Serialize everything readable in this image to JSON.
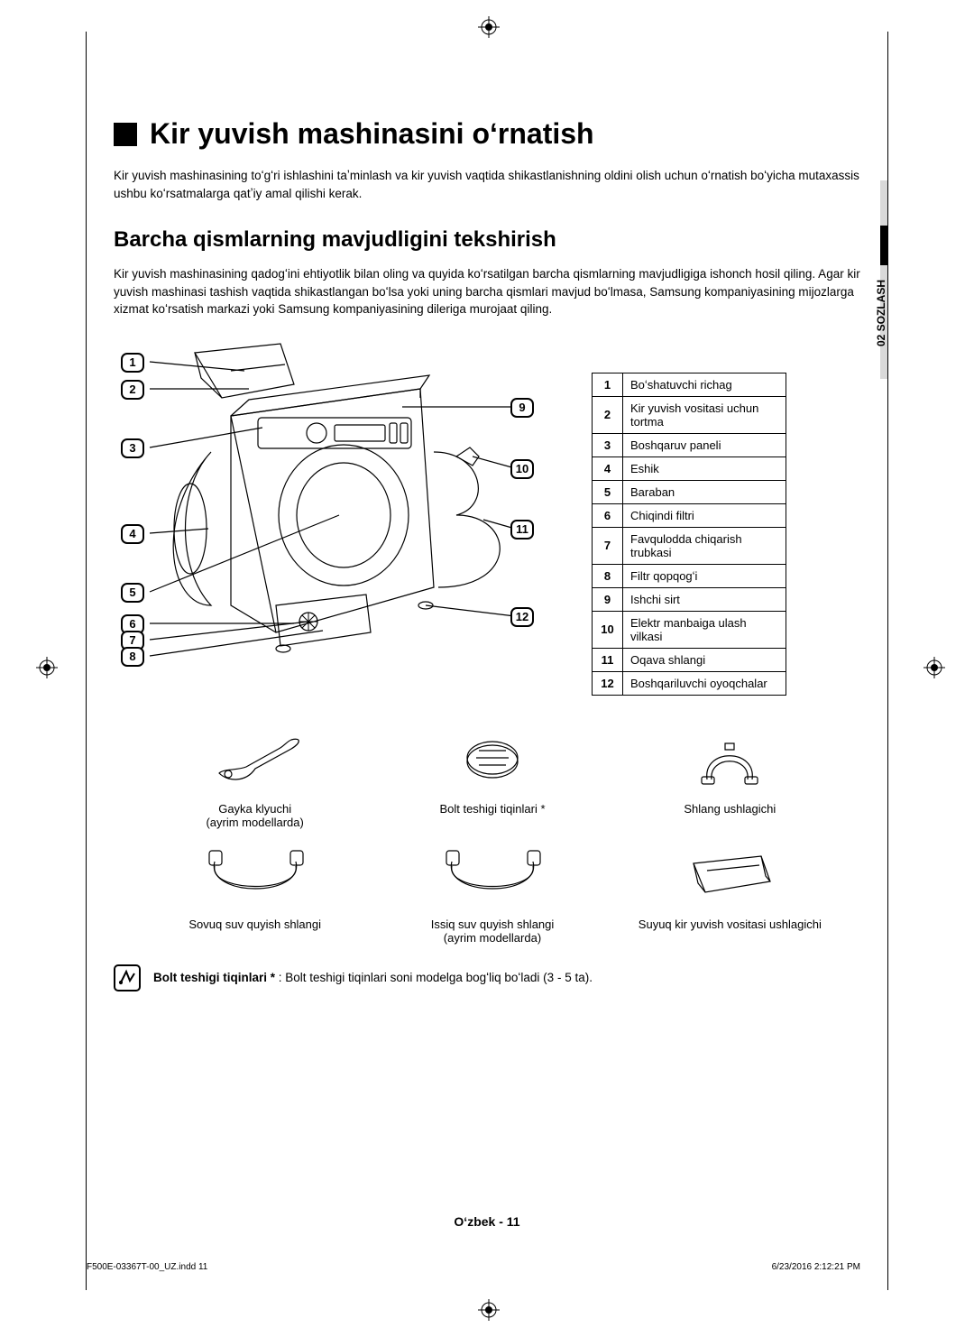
{
  "title": "Kir yuvish mashinasini oʻrnatish",
  "intro": "Kir yuvish mashinasining toʻgʻri ishlashini taʼminlash va kir yuvish vaqtida shikastlanishning oldini olish uchun oʻrnatish boʻyicha mutaxassis ushbu koʻrsatmalarga qatʼiy amal qilishi kerak.",
  "subtitle": "Barcha qismlarning mavjudligini tekshirish",
  "subintro": "Kir yuvish mashinasining qadogʻini ehtiyotlik bilan oling va quyida koʻrsatilgan barcha qismlarning mavjudligiga ishonch hosil qiling. Agar kir yuvish mashinasi tashish vaqtida shikastlangan boʻlsa yoki uning barcha qismlari mavjud boʻlmasa, Samsung kompaniyasining mijozlarga xizmat koʻrsatish markazi yoki Samsung kompaniyasining dileriga murojaat qiling.",
  "side_tab": "02  SOZLASH",
  "parts": [
    {
      "n": "1",
      "label": "Boʻshatuvchi richag"
    },
    {
      "n": "2",
      "label": "Kir yuvish vositasi uchun tortma"
    },
    {
      "n": "3",
      "label": "Boshqaruv paneli"
    },
    {
      "n": "4",
      "label": "Eshik"
    },
    {
      "n": "5",
      "label": "Baraban"
    },
    {
      "n": "6",
      "label": "Chiqindi filtri"
    },
    {
      "n": "7",
      "label": "Favqulodda chiqarish trubkasi"
    },
    {
      "n": "8",
      "label": "Filtr qopqogʻi"
    },
    {
      "n": "9",
      "label": "Ishchi sirt"
    },
    {
      "n": "10",
      "label": "Elektr manbaiga ulash vilkasi"
    },
    {
      "n": "11",
      "label": "Oqava shlangi"
    },
    {
      "n": "12",
      "label": "Boshqariluvchi oyoqchalar"
    }
  ],
  "accessories": {
    "a1": {
      "line1": "Gayka klyuchi",
      "line2": "(ayrim modellarda)"
    },
    "a2": {
      "line1": "Bolt teshigi tiqinlari *",
      "line2": ""
    },
    "a3": {
      "line1": "Shlang ushlagichi",
      "line2": ""
    },
    "a4": {
      "line1": "Sovuq suv quyish shlangi",
      "line2": ""
    },
    "a5": {
      "line1": "Issiq suv quyish shlangi",
      "line2": "(ayrim modellarda)"
    },
    "a6": {
      "line1": "Suyuq kir yuvish vositasi ushlagichi",
      "line2": ""
    }
  },
  "note_bold": "Bolt teshigi tiqinlari *",
  "note_rest": " : Bolt teshigi tiqinlari soni modelga bogʻliq boʻladi (3 - 5 ta).",
  "footer_page": "Oʻzbek - 11",
  "footer_file": "F500E-03367T-00_UZ.indd   11",
  "footer_ts": "6/23/2016   2:12:21 PM"
}
